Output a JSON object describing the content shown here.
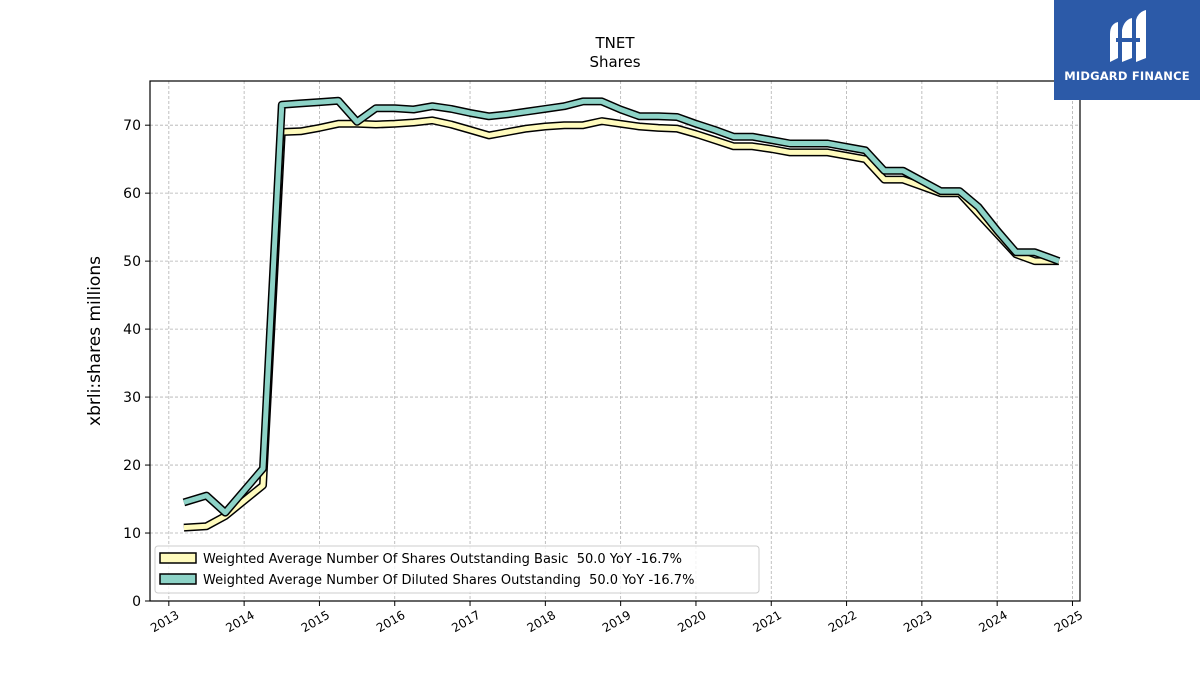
{
  "chart_data": {
    "type": "line",
    "title": "TNET",
    "subtitle": "Shares",
    "ylabel": "xbrli:shares millions",
    "xlabel": "",
    "xlim": [
      2012.75,
      2025.1
    ],
    "ylim": [
      0,
      76.5
    ],
    "yticks": [
      0,
      10,
      20,
      30,
      40,
      50,
      60,
      70
    ],
    "xticks": [
      2013,
      2014,
      2015,
      2016,
      2017,
      2018,
      2019,
      2020,
      2021,
      2022,
      2023,
      2024,
      2025
    ],
    "grid": true,
    "legend_position": "lower-left",
    "series": [
      {
        "name": "Weighted Average Number Of Shares Outstanding Basic  50.0 YoY -16.7%",
        "color": "#fffbbd",
        "points": [
          [
            2013.2,
            10.8
          ],
          [
            2013.5,
            11.0
          ],
          [
            2013.75,
            12.5
          ],
          [
            2014.25,
            17.0
          ],
          [
            2014.5,
            69.0
          ],
          [
            2014.75,
            69.1
          ],
          [
            2015.0,
            69.6
          ],
          [
            2015.25,
            70.2
          ],
          [
            2015.5,
            70.2
          ],
          [
            2015.75,
            70.1
          ],
          [
            2016.0,
            70.2
          ],
          [
            2016.25,
            70.4
          ],
          [
            2016.5,
            70.7
          ],
          [
            2016.75,
            70.1
          ],
          [
            2017.0,
            69.3
          ],
          [
            2017.25,
            68.5
          ],
          [
            2017.5,
            69.0
          ],
          [
            2017.75,
            69.5
          ],
          [
            2018.0,
            69.8
          ],
          [
            2018.25,
            70.0
          ],
          [
            2018.5,
            70.0
          ],
          [
            2018.75,
            70.6
          ],
          [
            2019.0,
            70.2
          ],
          [
            2019.25,
            69.8
          ],
          [
            2019.5,
            69.6
          ],
          [
            2019.75,
            69.5
          ],
          [
            2020.0,
            68.7
          ],
          [
            2020.25,
            67.8
          ],
          [
            2020.5,
            66.9
          ],
          [
            2020.75,
            66.9
          ],
          [
            2021.0,
            66.5
          ],
          [
            2021.25,
            66.0
          ],
          [
            2021.5,
            66.0
          ],
          [
            2021.75,
            66.0
          ],
          [
            2022.0,
            65.5
          ],
          [
            2022.25,
            65.0
          ],
          [
            2022.5,
            62.0
          ],
          [
            2022.75,
            62.0
          ],
          [
            2023.0,
            61.0
          ],
          [
            2023.25,
            60.0
          ],
          [
            2023.5,
            60.0
          ],
          [
            2023.75,
            57.0
          ],
          [
            2024.0,
            54.0
          ],
          [
            2024.25,
            51.0
          ],
          [
            2024.5,
            50.0
          ],
          [
            2024.75,
            50.0
          ],
          [
            2024.82,
            50.0
          ]
        ]
      },
      {
        "name": "Weighted Average Number Of Diluted Shares Outstanding  50.0 YoY -16.7%",
        "color": "#8dd3c7",
        "points": [
          [
            2013.2,
            14.5
          ],
          [
            2013.5,
            15.5
          ],
          [
            2013.75,
            13.0
          ],
          [
            2014.25,
            19.5
          ],
          [
            2014.5,
            73.0
          ],
          [
            2014.75,
            73.2
          ],
          [
            2015.0,
            73.4
          ],
          [
            2015.25,
            73.6
          ],
          [
            2015.5,
            70.5
          ],
          [
            2015.75,
            72.5
          ],
          [
            2016.0,
            72.5
          ],
          [
            2016.25,
            72.3
          ],
          [
            2016.5,
            72.8
          ],
          [
            2016.75,
            72.4
          ],
          [
            2017.0,
            71.8
          ],
          [
            2017.25,
            71.3
          ],
          [
            2017.5,
            71.6
          ],
          [
            2017.75,
            72.0
          ],
          [
            2018.0,
            72.4
          ],
          [
            2018.25,
            72.8
          ],
          [
            2018.5,
            73.5
          ],
          [
            2018.75,
            73.5
          ],
          [
            2019.0,
            72.3
          ],
          [
            2019.25,
            71.3
          ],
          [
            2019.5,
            71.3
          ],
          [
            2019.75,
            71.2
          ],
          [
            2020.0,
            70.2
          ],
          [
            2020.25,
            69.3
          ],
          [
            2020.5,
            68.3
          ],
          [
            2020.75,
            68.3
          ],
          [
            2021.0,
            67.8
          ],
          [
            2021.25,
            67.3
          ],
          [
            2021.5,
            67.3
          ],
          [
            2021.75,
            67.3
          ],
          [
            2022.0,
            66.8
          ],
          [
            2022.25,
            66.3
          ],
          [
            2022.5,
            63.3
          ],
          [
            2022.75,
            63.3
          ],
          [
            2023.0,
            61.8
          ],
          [
            2023.25,
            60.3
          ],
          [
            2023.5,
            60.3
          ],
          [
            2023.75,
            58.0
          ],
          [
            2024.0,
            54.5
          ],
          [
            2024.25,
            51.3
          ],
          [
            2024.5,
            51.3
          ],
          [
            2024.75,
            50.3
          ],
          [
            2024.82,
            50.0
          ]
        ]
      }
    ]
  },
  "logo": {
    "text": "MIDGARD FINANCE",
    "bg_color": "#2c5aa8"
  }
}
